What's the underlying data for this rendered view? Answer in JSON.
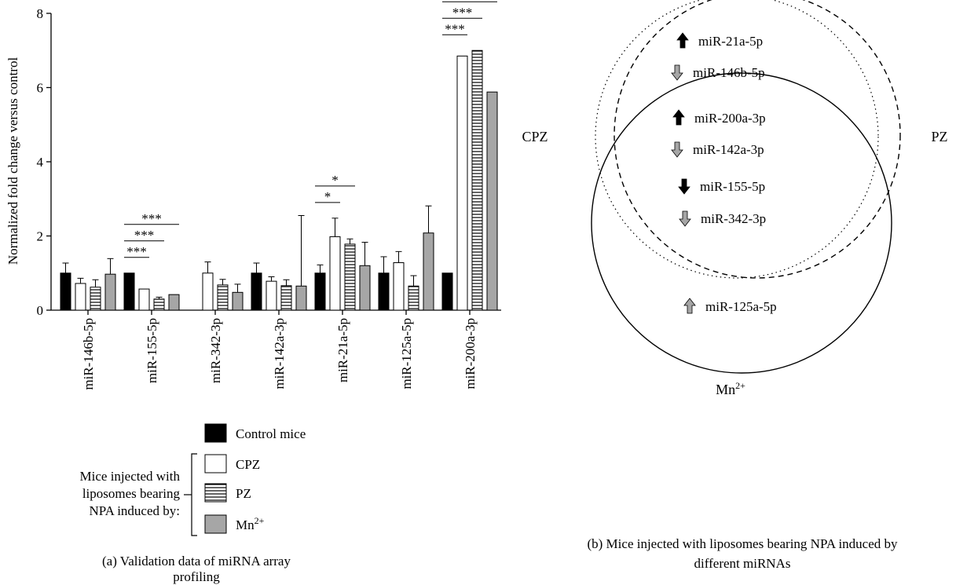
{
  "chart_data": [
    {
      "type": "bar",
      "caption": "(a) Validation data of miRNA array profiling",
      "ylabel": "Normalized fold change versus control",
      "ylim": [
        0,
        8
      ],
      "yticks": [
        0,
        2,
        4,
        6,
        8
      ],
      "categories": [
        "miR-146b-5p",
        "miR-155-5p",
        "miR-342-3p",
        "miR-142a-3p",
        "miR-21a-5p",
        "miR-125a-5p",
        "miR-200a-3p"
      ],
      "series": [
        {
          "name": "Control mice",
          "fill": "#000000",
          "pattern": "solid",
          "values": [
            1.0,
            1.0,
            null,
            1.0,
            1.0,
            1.0,
            1.0
          ],
          "errors": [
            0.27,
            null,
            null,
            0.27,
            0.22,
            0.44,
            null
          ]
        },
        {
          "name": "CPZ",
          "fill": "#ffffff",
          "pattern": "open",
          "values": [
            0.72,
            0.57,
            1.0,
            0.78,
            1.98,
            1.28,
            6.85
          ],
          "errors": [
            0.14,
            null,
            0.3,
            0.12,
            0.5,
            0.3,
            null
          ]
        },
        {
          "name": "PZ",
          "fill": "#ffffff",
          "pattern": "horizontal-lines",
          "values": [
            0.62,
            0.3,
            0.68,
            0.66,
            1.78,
            0.65,
            7.0
          ],
          "errors": [
            0.2,
            0.05,
            0.15,
            0.16,
            0.14,
            0.28,
            null
          ]
        },
        {
          "name": "Mn2+",
          "fill": "#a6a6a6",
          "pattern": "solid",
          "values": [
            0.97,
            0.42,
            0.48,
            0.65,
            1.2,
            2.08,
            5.88
          ],
          "errors": [
            0.42,
            null,
            0.22,
            1.9,
            0.63,
            0.73,
            null
          ]
        }
      ],
      "significance": [
        {
          "category": "miR-155-5p",
          "marks": [
            "***",
            "***",
            "***"
          ]
        },
        {
          "category": "miR-21a-5p",
          "marks": [
            "*",
            "*"
          ]
        },
        {
          "category": "miR-200a-3p",
          "marks": [
            "***",
            "***",
            "***"
          ]
        }
      ],
      "legend": {
        "position": "bottom",
        "items": [
          "Control mice",
          "CPZ",
          "PZ",
          "Mn"
        ],
        "superscript_last": "2+",
        "group_label": [
          "Mice injected with",
          "liposomes bearing",
          "NPA induced by:"
        ]
      }
    },
    {
      "type": "venn",
      "caption_lines": [
        "(b) Mice injected with liposomes bearing NPA induced by",
        "different miRNAs"
      ],
      "sets": [
        {
          "name": "CPZ",
          "style": "dotted"
        },
        {
          "name": "PZ",
          "style": "dashed"
        },
        {
          "name": "Mn",
          "sup": "2+",
          "style": "solid"
        }
      ],
      "items": [
        {
          "label": "miR-21a-5p",
          "direction": "up",
          "color": "#000000"
        },
        {
          "label": "miR-146b-5p",
          "direction": "down",
          "color": "#a6a6a6"
        },
        {
          "label": "miR-200a-3p",
          "direction": "up",
          "color": "#000000"
        },
        {
          "label": "miR-142a-3p",
          "direction": "down",
          "color": "#a6a6a6"
        },
        {
          "label": "miR-155-5p",
          "direction": "down",
          "color": "#000000"
        },
        {
          "label": "miR-342-3p",
          "direction": "down",
          "color": "#a6a6a6"
        },
        {
          "label": "miR-125a-5p",
          "direction": "up",
          "color": "#a6a6a6"
        }
      ]
    }
  ]
}
